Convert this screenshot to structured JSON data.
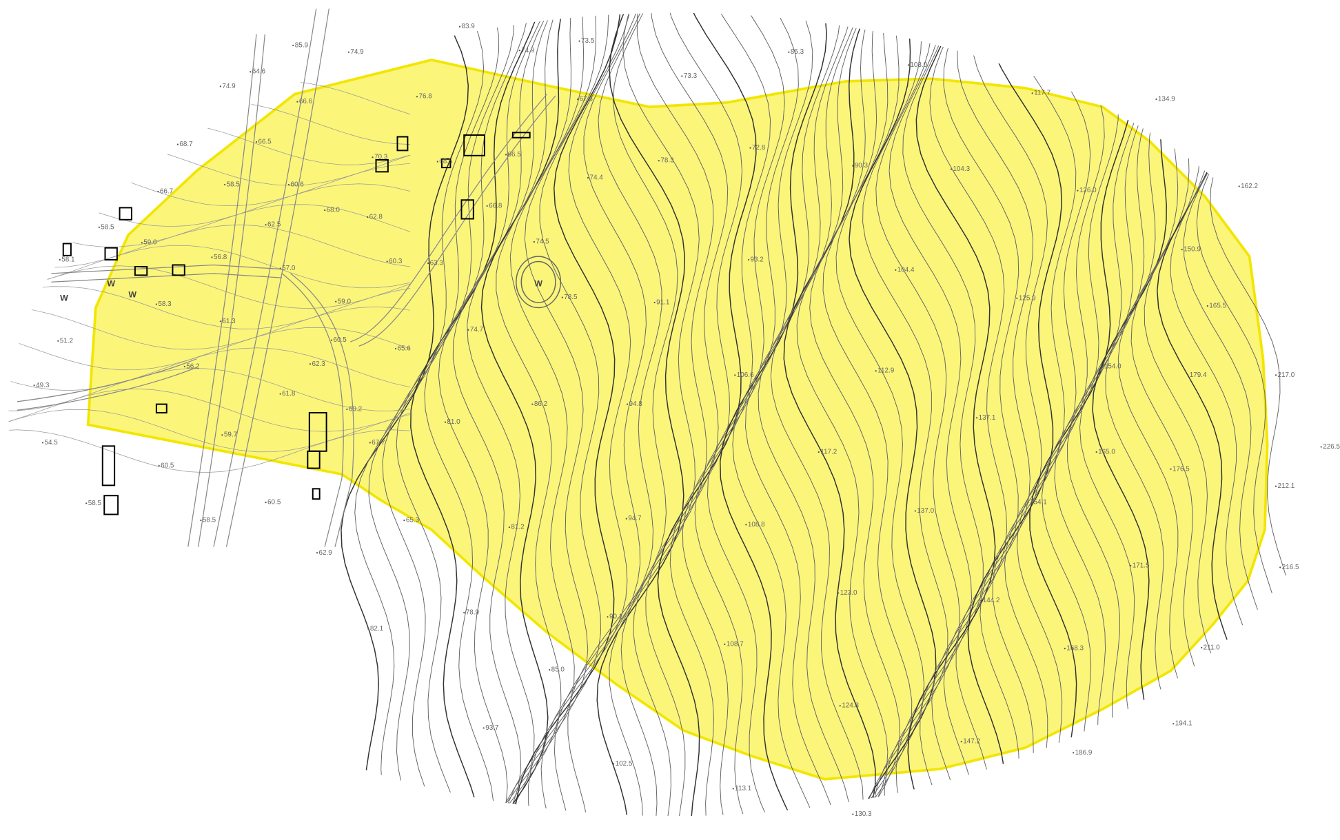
{
  "map": {
    "spot_heights": [
      "83.9",
      "85.9",
      "74.9",
      "74.9",
      "73.5",
      "86.3",
      "103.0",
      "74.9",
      "64.6",
      "73.3",
      "117.7",
      "134.9",
      "66.6",
      "76.8",
      "67.3",
      "68.7",
      "66.5",
      "70.3",
      "68.5",
      "66.5",
      "72.8",
      "78.3",
      "90.3",
      "104.3",
      "66.7",
      "58.5",
      "60.6",
      "74.4",
      "126.0",
      "162.2",
      "68.0",
      "62.8",
      "66.8",
      "58.5",
      "62.5",
      "74.5",
      "150.9",
      "58.1",
      "59.0",
      "56.8",
      "60.3",
      "63.3",
      "93.2",
      "104.4",
      "57.0",
      "58.3",
      "78.5",
      "91.1",
      "125.9",
      "165.5",
      "59.0",
      "61.3",
      "51.2",
      "74.7",
      "60.5",
      "65.6",
      "62.3",
      "56.2",
      "106.6",
      "112.9",
      "154.0",
      "179.4",
      "217.0",
      "49.3",
      "61.8",
      "86.2",
      "94.8",
      "60.2",
      "81.0",
      "137.1",
      "59.7",
      "67.7",
      "54.5",
      "117.2",
      "165.0",
      "226.5",
      "60.5",
      "176.5",
      "212.1",
      "58.5",
      "60.5",
      "65.3",
      "154.1",
      "137.0",
      "94.7",
      "81.2",
      "108.8",
      "58.5",
      "62.9",
      "171.5",
      "216.5",
      "123.0",
      "90.1",
      "78.9",
      "144.2",
      "82.1",
      "108.7",
      "168.3",
      "211.0",
      "85.0",
      "124.8",
      "93.7",
      "194.1",
      "147.2",
      "186.9",
      "102.5",
      "113.1",
      "130.3"
    ],
    "pond_labels": [
      "W",
      "W",
      "W",
      "W"
    ]
  }
}
